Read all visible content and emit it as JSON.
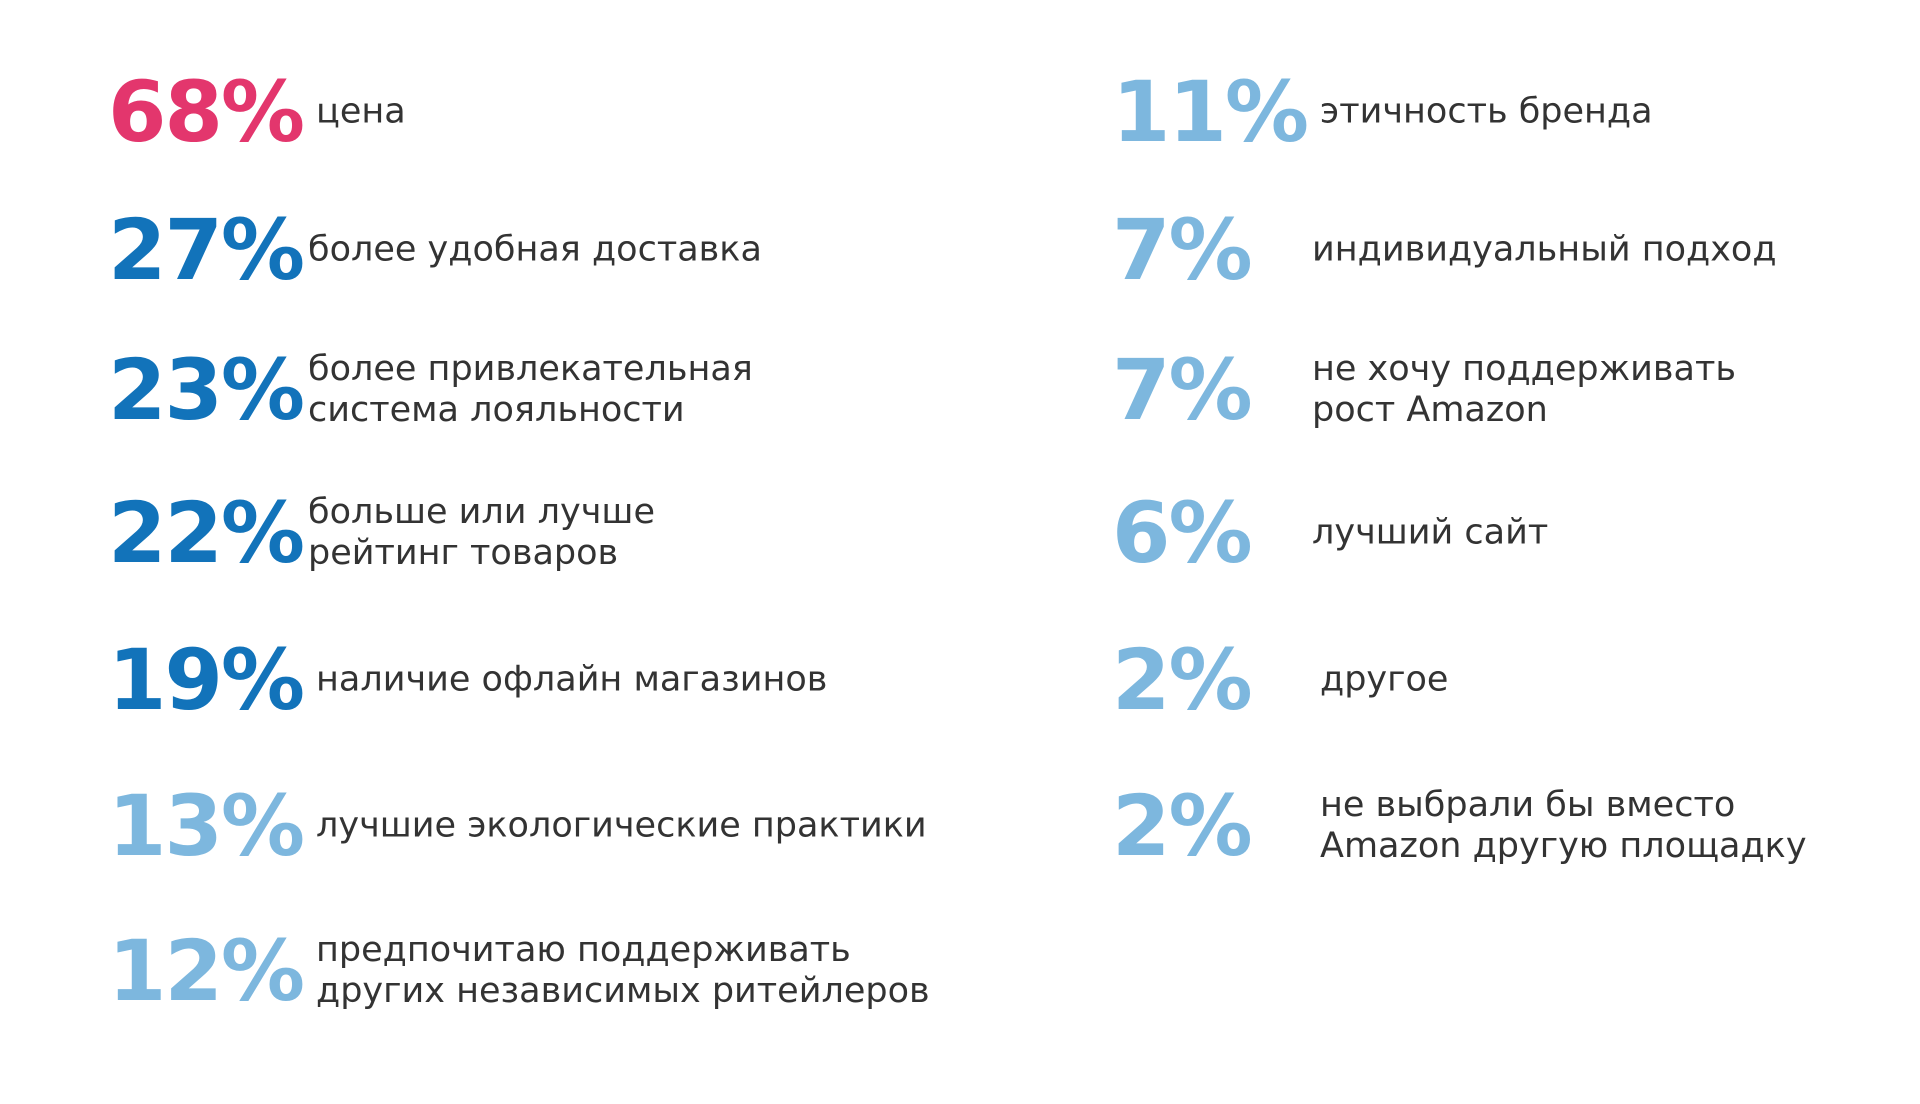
{
  "colors": {
    "highlight": "#E3366D",
    "strong_blue": "#1273BA",
    "light_blue": "#7DB7DE",
    "text": "#333333"
  },
  "left_items": [
    {
      "value": "68%",
      "label_lines": [
        "цена"
      ],
      "color": "#E3366D"
    },
    {
      "value": "27%",
      "label_lines": [
        "более удобная доставка"
      ],
      "color": "#1273BA"
    },
    {
      "value": "23%",
      "label_lines": [
        "более привлекательная",
        "система лояльности"
      ],
      "color": "#1273BA"
    },
    {
      "value": "22%",
      "label_lines": [
        "больше или лучше",
        "рейтинг товаров"
      ],
      "color": "#1273BA"
    },
    {
      "value": "19%",
      "label_lines": [
        "наличие офлайн магазинов"
      ],
      "color": "#1273BA"
    },
    {
      "value": "13%",
      "label_lines": [
        "лучшие экологические практики"
      ],
      "color": "#7DB7DE"
    },
    {
      "value": "12%",
      "label_lines": [
        "предпочитаю поддерживать",
        "других независимых ритейлеров"
      ],
      "color": "#7DB7DE"
    }
  ],
  "right_items": [
    {
      "value": "11%",
      "label_lines": [
        "этичность бренда"
      ],
      "color": "#7DB7DE"
    },
    {
      "value": "7%",
      "label_lines": [
        "индивидуальный подход"
      ],
      "color": "#7DB7DE"
    },
    {
      "value": "7%",
      "label_lines": [
        "не хочу поддерживать",
        "рост Amazon"
      ],
      "color": "#7DB7DE"
    },
    {
      "value": "6%",
      "label_lines": [
        "лучший сайт"
      ],
      "color": "#7DB7DE"
    },
    {
      "value": "2%",
      "label_lines": [
        "другое"
      ],
      "color": "#7DB7DE"
    },
    {
      "value": "2%",
      "label_lines": [
        "не выбрали бы вместо",
        "Amazon другую площадку"
      ],
      "color": "#7DB7DE"
    }
  ]
}
